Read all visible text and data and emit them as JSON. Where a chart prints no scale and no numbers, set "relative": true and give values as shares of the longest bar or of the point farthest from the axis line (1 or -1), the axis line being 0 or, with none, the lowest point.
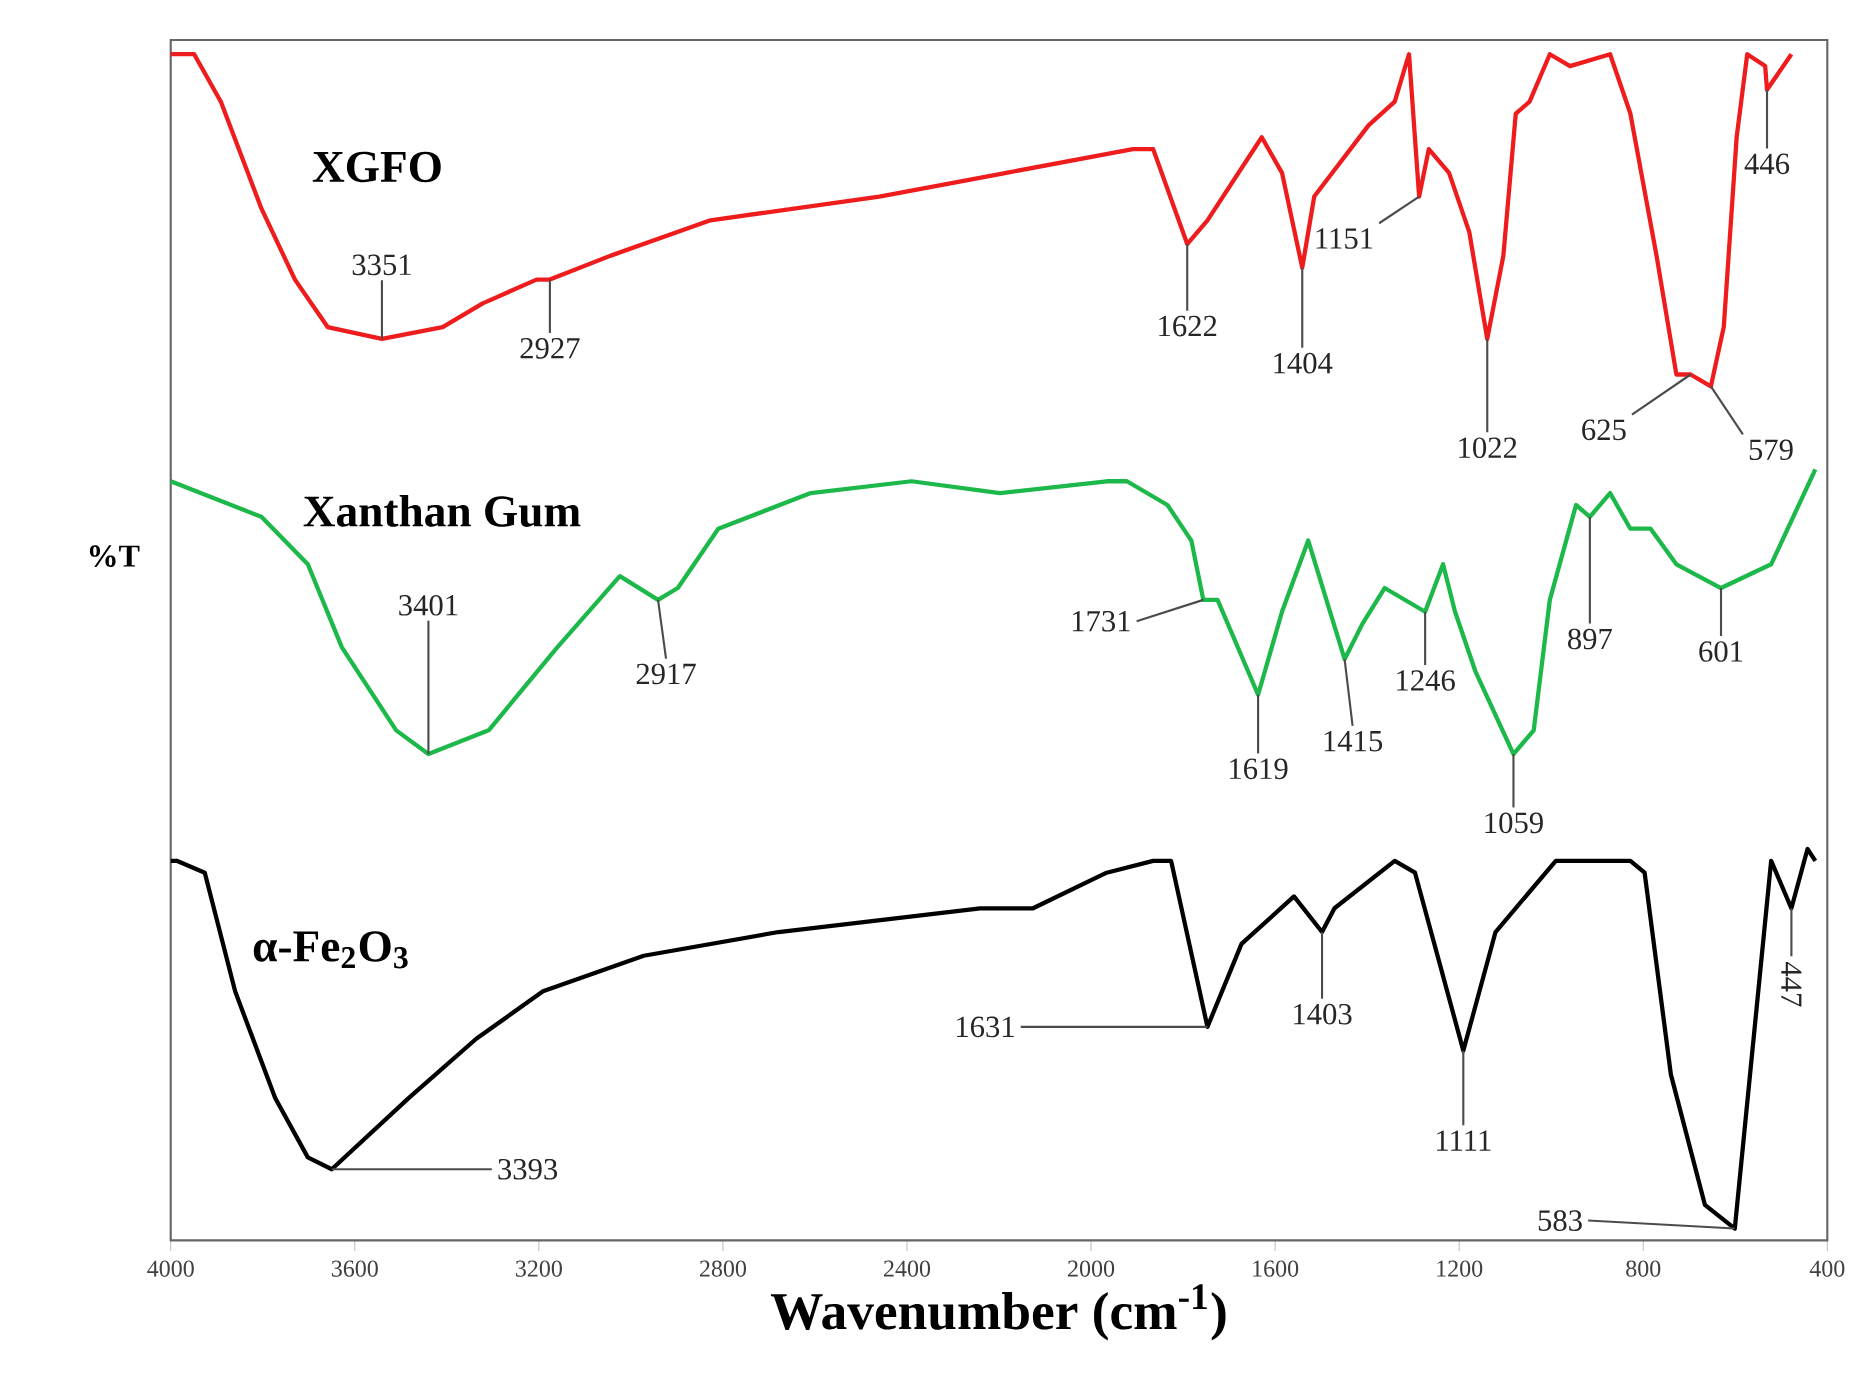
{
  "chart_data": {
    "type": "line",
    "relative": true,
    "xlabel": "Wavenumber (cm$^{-1}$)",
    "ylabel": "%T",
    "xlim": [
      4000,
      400
    ],
    "xticks": [
      4000,
      3600,
      3200,
      2800,
      2400,
      2000,
      1600,
      1200,
      800,
      400
    ],
    "series": [
      {
        "name": "XGFO",
        "color": "#ee1c1c",
        "x": [
          4000,
          3949,
          3891,
          3803,
          3730,
          3659,
          3541,
          3409,
          3322,
          3205,
          3176,
          3045,
          2827,
          2460,
          2184,
          1909,
          1865,
          1791,
          1747,
          1629,
          1585,
          1541,
          1515,
          1397,
          1340,
          1309,
          1287,
          1266,
          1222,
          1178,
          1139,
          1104,
          1077,
          1047,
          1003,
          959,
          872,
          828,
          771,
          728,
          697,
          653,
          625,
          597,
          574,
          535,
          531,
          478
        ],
        "values": [
          1.0,
          1.0,
          0.96,
          0.87,
          0.81,
          0.77,
          0.76,
          0.77,
          0.79,
          0.81,
          0.81,
          0.83,
          0.86,
          0.88,
          0.9,
          0.92,
          0.92,
          0.84,
          0.86,
          0.93,
          0.9,
          0.82,
          0.88,
          0.94,
          0.96,
          1.0,
          0.88,
          0.92,
          0.9,
          0.85,
          0.76,
          0.83,
          0.95,
          0.96,
          1.0,
          0.99,
          1.0,
          0.95,
          0.83,
          0.73,
          0.73,
          0.72,
          0.77,
          0.93,
          1.0,
          0.99,
          0.97,
          1.0
        ]
      },
      {
        "name": "Xanthan Gum",
        "color": "#1db84a",
        "x": [
          4000,
          3803,
          3702,
          3628,
          3510,
          3440,
          3309,
          3160,
          3024,
          2941,
          2898,
          2810,
          2609,
          2390,
          2198,
          1966,
          1922,
          1834,
          1782,
          1756,
          1725,
          1637,
          1585,
          1528,
          1449,
          1410,
          1362,
          1274,
          1235,
          1209,
          1165,
          1082,
          1038,
          1003,
          946,
          916,
          872,
          828,
          784,
          728,
          631,
          522,
          426
        ],
        "values": [
          0.64,
          0.61,
          0.57,
          0.5,
          0.43,
          0.41,
          0.43,
          0.5,
          0.56,
          0.54,
          0.55,
          0.6,
          0.63,
          0.64,
          0.63,
          0.64,
          0.64,
          0.62,
          0.59,
          0.54,
          0.54,
          0.46,
          0.53,
          0.59,
          0.49,
          0.52,
          0.55,
          0.53,
          0.57,
          0.53,
          0.48,
          0.41,
          0.43,
          0.54,
          0.62,
          0.61,
          0.63,
          0.6,
          0.6,
          0.57,
          0.55,
          0.57,
          0.65
        ]
      },
      {
        "name": "α-Fe$_{2}$O$_{3}$",
        "color": "#000000",
        "x": [
          4000,
          3987,
          3926,
          3860,
          3773,
          3702,
          3650,
          3483,
          3336,
          3191,
          2972,
          2679,
          2241,
          2126,
          1966,
          1865,
          1826,
          1747,
          1673,
          1559,
          1498,
          1471,
          1340,
          1296,
          1191,
          1121,
          990,
          872,
          828,
          797,
          740,
          666,
          601,
          522,
          478,
          443,
          426
        ],
        "values": [
          0.32,
          0.32,
          0.31,
          0.21,
          0.12,
          0.07,
          0.06,
          0.12,
          0.17,
          0.21,
          0.24,
          0.26,
          0.28,
          0.28,
          0.31,
          0.32,
          0.32,
          0.18,
          0.25,
          0.29,
          0.26,
          0.28,
          0.32,
          0.31,
          0.16,
          0.26,
          0.32,
          0.32,
          0.32,
          0.31,
          0.14,
          0.03,
          0.01,
          0.32,
          0.28,
          0.33,
          0.32
        ]
      }
    ],
    "annotations": [
      {
        "text": "3351",
        "x": 3541,
        "y": 0.76
      },
      {
        "text": "2927",
        "x": 3176,
        "y": 0.81
      },
      {
        "text": "1622",
        "x": 1791,
        "y": 0.84
      },
      {
        "text": "1404",
        "x": 1541,
        "y": 0.82
      },
      {
        "text": "1151",
        "x": 1287,
        "y": 0.88
      },
      {
        "text": "1022",
        "x": 1139,
        "y": 0.76
      },
      {
        "text": "625",
        "x": 697,
        "y": 0.73
      },
      {
        "text": "579",
        "x": 653,
        "y": 0.72
      },
      {
        "text": "446",
        "x": 531,
        "y": 0.97
      },
      {
        "text": "3401",
        "x": 3440,
        "y": 0.41
      },
      {
        "text": "2917",
        "x": 2941,
        "y": 0.54
      },
      {
        "text": "1731",
        "x": 1756,
        "y": 0.54
      },
      {
        "text": "1619",
        "x": 1637,
        "y": 0.46
      },
      {
        "text": "1415",
        "x": 1449,
        "y": 0.49
      },
      {
        "text": "1246",
        "x": 1274,
        "y": 0.53
      },
      {
        "text": "1059",
        "x": 1082,
        "y": 0.41
      },
      {
        "text": "897",
        "x": 916,
        "y": 0.61
      },
      {
        "text": "601",
        "x": 631,
        "y": 0.55
      },
      {
        "text": "3393",
        "x": 3650,
        "y": 0.06
      },
      {
        "text": "1631",
        "x": 1747,
        "y": 0.18
      },
      {
        "text": "1403",
        "x": 1498,
        "y": 0.26
      },
      {
        "text": "1111",
        "x": 1191,
        "y": 0.16
      },
      {
        "text": "583",
        "x": 601,
        "y": 0.01
      },
      {
        "text": "447",
        "x": 478,
        "y": 0.28
      }
    ]
  }
}
